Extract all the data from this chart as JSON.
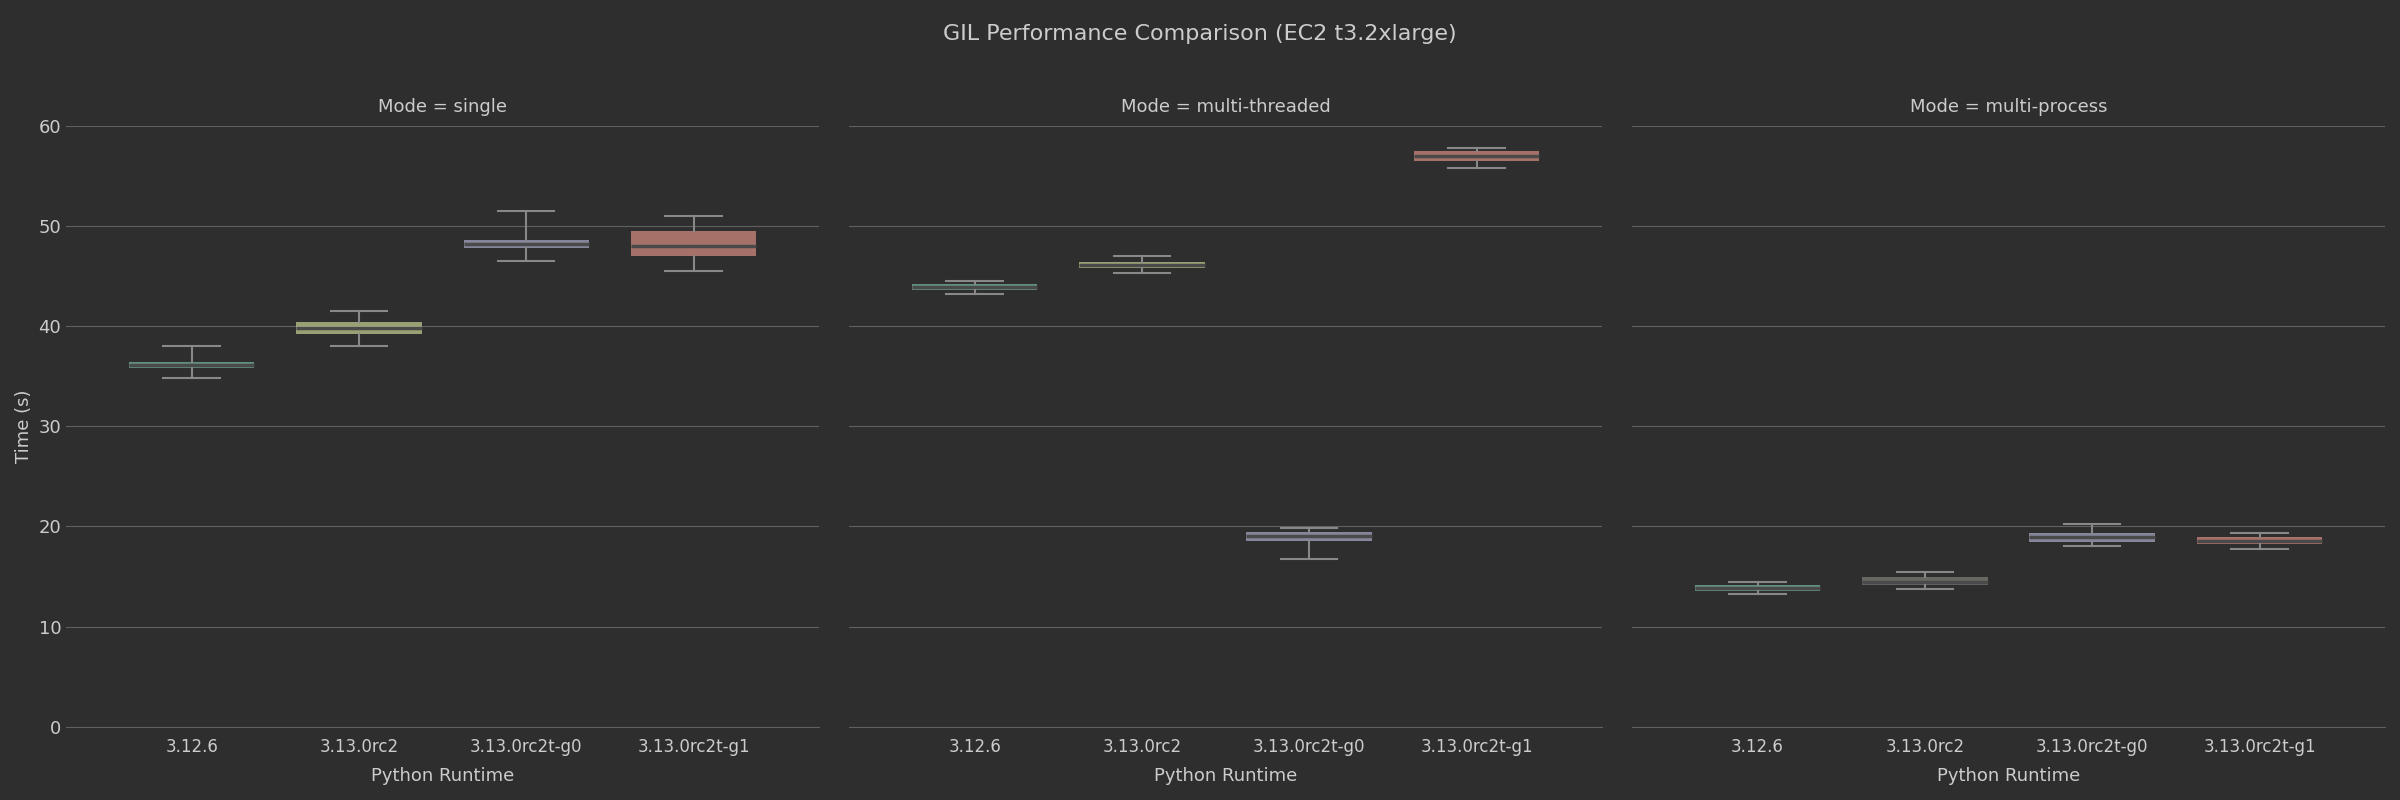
{
  "title": "GIL Performance Comparison (EC2 t3.2xlarge)",
  "mode_labels": [
    "Mode = single",
    "Mode = multi-threaded",
    "Mode = multi-process"
  ],
  "x_labels": [
    "3.12.6",
    "3.13.0rc2",
    "3.13.0rc2t-g0",
    "3.13.0rc2t-g1"
  ],
  "xlabel": "Python Runtime",
  "ylabel": "Time (s)",
  "ylim": [
    0,
    60
  ],
  "yticks": [
    0,
    10,
    20,
    30,
    40,
    50,
    60
  ],
  "background_color": "#2e2e2e",
  "grid_color": "#606060",
  "text_color": "#cccccc",
  "box_colors": [
    "#7ec8a8",
    "#d4e09b",
    "#b5b5d8",
    "#e8968a"
  ],
  "box_data": {
    "single": [
      {
        "q1": 35.8,
        "median": 36.1,
        "q3": 36.4,
        "whisker_low": 34.8,
        "whisker_high": 38.0
      },
      {
        "q1": 39.2,
        "median": 39.8,
        "q3": 40.4,
        "whisker_low": 38.0,
        "whisker_high": 41.5
      },
      {
        "q1": 47.8,
        "median": 48.2,
        "q3": 48.6,
        "whisker_low": 46.5,
        "whisker_high": 51.5
      },
      {
        "q1": 47.0,
        "median": 48.0,
        "q3": 49.5,
        "whisker_low": 45.5,
        "whisker_high": 51.0
      }
    ],
    "multi-threaded": [
      {
        "q1": 43.6,
        "median": 43.9,
        "q3": 44.2,
        "whisker_low": 43.2,
        "whisker_high": 44.5
      },
      {
        "q1": 45.8,
        "median": 46.1,
        "q3": 46.4,
        "whisker_low": 45.3,
        "whisker_high": 47.0
      },
      {
        "q1": 18.6,
        "median": 19.0,
        "q3": 19.4,
        "whisker_low": 16.8,
        "whisker_high": 19.8
      },
      {
        "q1": 56.5,
        "median": 57.0,
        "q3": 57.5,
        "whisker_low": 55.8,
        "whisker_high": 57.8
      }
    ],
    "multi-process": [
      {
        "q1": 13.6,
        "median": 13.9,
        "q3": 14.2,
        "whisker_low": 13.3,
        "whisker_high": 14.5
      },
      {
        "q1": 14.2,
        "median": 14.5,
        "q3": 15.0,
        "whisker_low": 13.8,
        "whisker_high": 15.5
      },
      {
        "q1": 18.5,
        "median": 18.9,
        "q3": 19.3,
        "whisker_low": 18.1,
        "whisker_high": 20.2
      },
      {
        "q1": 18.3,
        "median": 18.6,
        "q3": 18.9,
        "whisker_low": 17.8,
        "whisker_high": 19.3
      }
    ]
  },
  "box_colors_per_mode": {
    "single": [
      "#7ec8a8",
      "#d4e09b",
      "#b5b5d8",
      "#e8968a"
    ],
    "multi-threaded": [
      "#7ec8a8",
      "#d4e09b",
      "#b5b5d8",
      "#e8968a"
    ],
    "multi-process": [
      "#7ec8a8",
      "#888880",
      "#b5b5d8",
      "#e8968a"
    ]
  }
}
